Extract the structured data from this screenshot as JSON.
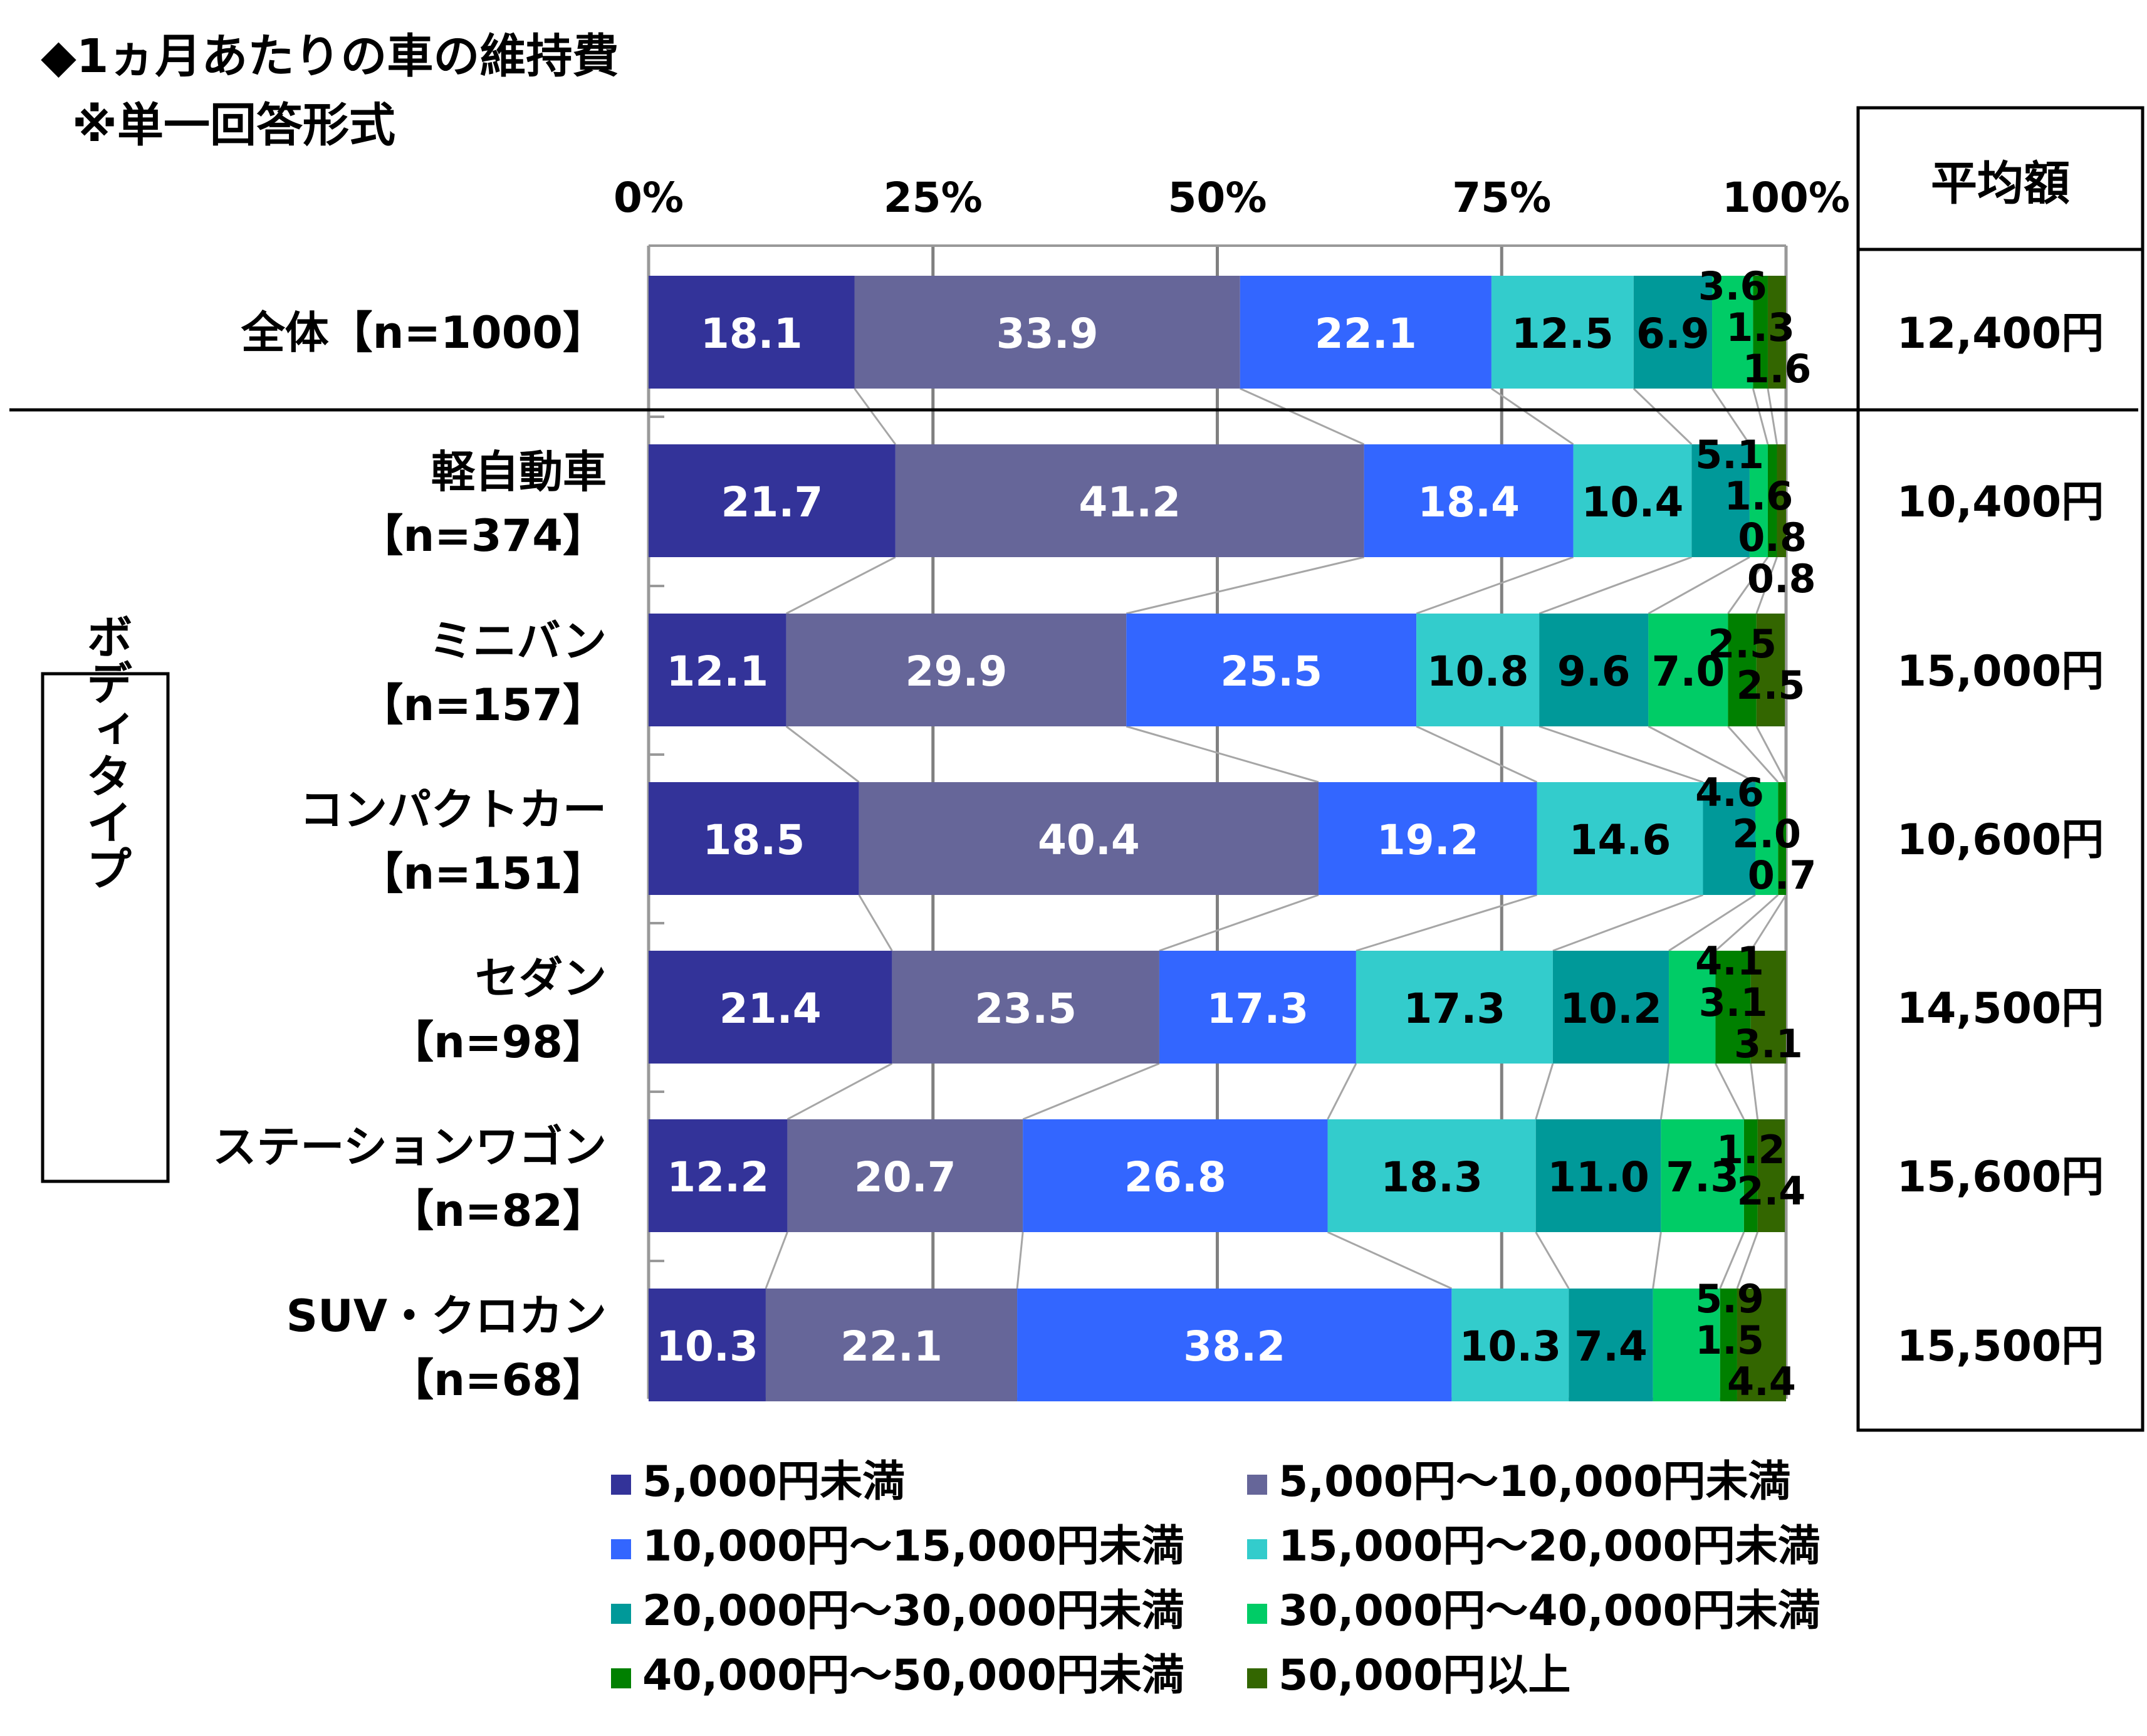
{
  "title_line1": "◆1ヵ月あたりの車の維持費",
  "title_line2": "※単一回答形式",
  "avg_header": "平均額",
  "group_label": "ボディタイプ",
  "chart_data": {
    "type": "bar",
    "orientation": "horizontal-stacked-100",
    "title": "1ヵ月あたりの車の維持費",
    "xlim": [
      0,
      100
    ],
    "x_ticks": [
      "0%",
      "25%",
      "50%",
      "75%",
      "100%"
    ],
    "grid": true,
    "legend_position": "bottom",
    "series": [
      {
        "name": "5,000円未満",
        "color": "#333399"
      },
      {
        "name": "5,000円～10,000円未満",
        "color": "#666699"
      },
      {
        "name": "10,000円～15,000円未満",
        "color": "#3366ff"
      },
      {
        "name": "15,000円～20,000円未満",
        "color": "#33cccc"
      },
      {
        "name": "20,000円～30,000円未満",
        "color": "#009999"
      },
      {
        "name": "30,000円～40,000円未満",
        "color": "#00cc66"
      },
      {
        "name": "40,000円～50,000円未満",
        "color": "#008000"
      },
      {
        "name": "50,000円以上",
        "color": "#336600"
      }
    ],
    "rows": [
      {
        "label1": "全体【n=1000】",
        "label2": "",
        "values": [
          18.1,
          33.9,
          22.1,
          12.5,
          6.9,
          3.6,
          1.3,
          1.6
        ],
        "average": "12,400円"
      },
      {
        "label1": "軽自動車",
        "label2": "【n=374】",
        "values": [
          21.7,
          41.2,
          18.4,
          10.4,
          5.1,
          1.6,
          0.8,
          0.8
        ],
        "average": "10,400円"
      },
      {
        "label1": "ミニバン",
        "label2": "【n=157】",
        "values": [
          12.1,
          29.9,
          25.5,
          10.8,
          9.6,
          7.0,
          2.5,
          2.5
        ],
        "average": "15,000円"
      },
      {
        "label1": "コンパクトカー",
        "label2": "【n=151】",
        "values": [
          18.5,
          40.4,
          19.2,
          14.6,
          4.6,
          2.0,
          0.7,
          0.0
        ],
        "average": "10,600円"
      },
      {
        "label1": "セダン",
        "label2": "【n=98】",
        "values": [
          21.4,
          23.5,
          17.3,
          17.3,
          10.2,
          4.1,
          3.1,
          3.1
        ],
        "average": "14,500円"
      },
      {
        "label1": "ステーションワゴン",
        "label2": "【n=82】",
        "values": [
          12.2,
          20.7,
          26.8,
          18.3,
          11.0,
          7.3,
          1.2,
          2.4
        ],
        "average": "15,600円"
      },
      {
        "label1": "SUV・クロカン",
        "label2": "【n=68】",
        "values": [
          10.3,
          22.1,
          38.2,
          10.3,
          7.4,
          5.9,
          1.5,
          4.4
        ],
        "average": "15,500円"
      }
    ]
  }
}
